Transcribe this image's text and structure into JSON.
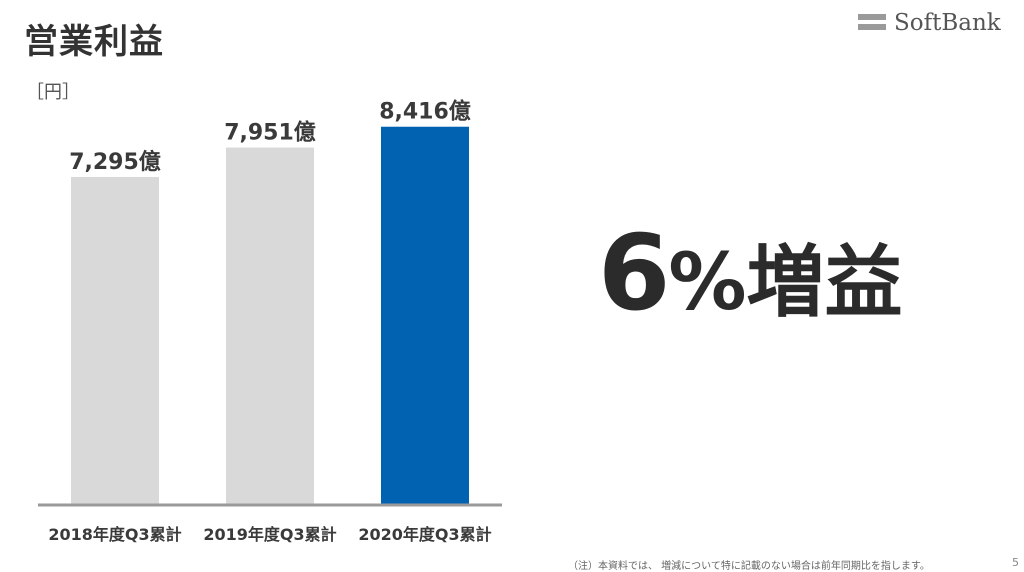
{
  "header": {
    "title": "営業利益"
  },
  "logo": {
    "text": "SoftBank"
  },
  "unit_label": "［円］",
  "headline": {
    "number": "6",
    "text": "%増益"
  },
  "footnote": "（注）本資料では、 増減について特に記載のない場合は前年同期比を指します。",
  "page_number": "5",
  "colors": {
    "bar_past": "#d9d9d9",
    "bar_current": "#0062b1",
    "axis": "#9a9a9a"
  },
  "chart_data": {
    "type": "bar",
    "categories": [
      "2018年度Q3累計",
      "2019年度Q3累計",
      "2020年度Q3累計"
    ],
    "values": [
      7295,
      7951,
      8416
    ],
    "data_labels": [
      "7,295億",
      "7,951億",
      "8,416億"
    ],
    "unit": "億円",
    "ylim": [
      0,
      8700
    ],
    "grid": false,
    "legend": "none"
  }
}
